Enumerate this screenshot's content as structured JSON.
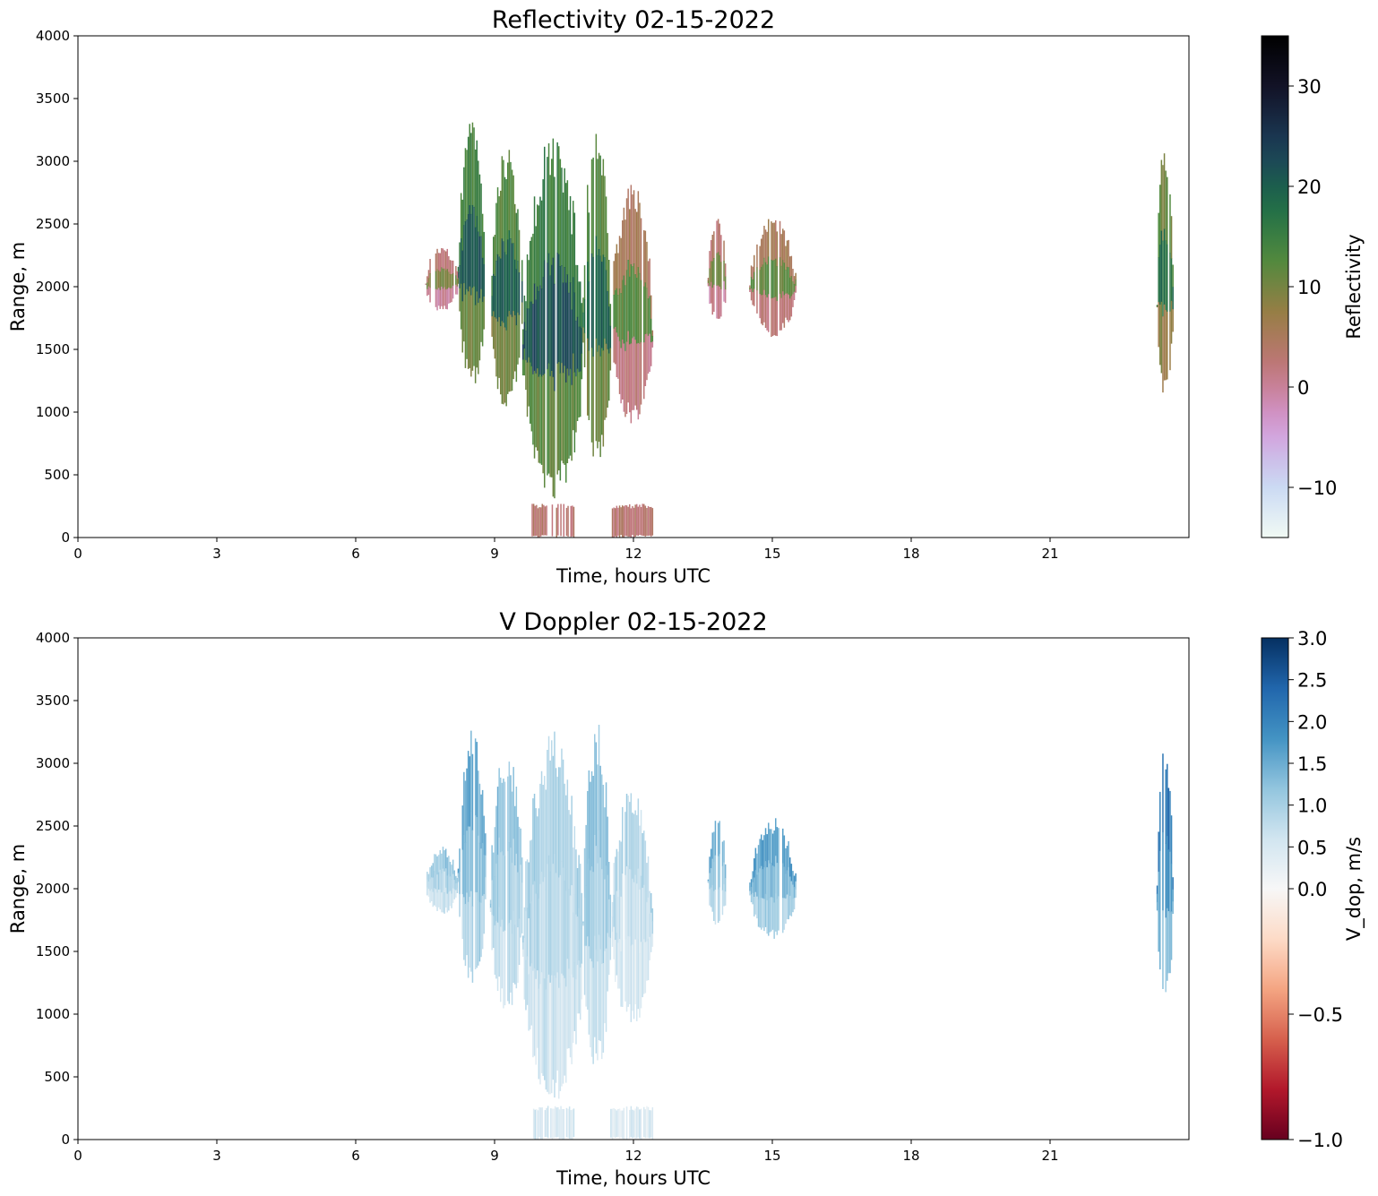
{
  "chart_data": [
    {
      "type": "heatmap",
      "title": "Reflectivity 02-15-2022",
      "xlabel": "Time, hours UTC",
      "ylabel": "Range, m",
      "xlim": [
        0,
        24
      ],
      "ylim": [
        0,
        4000
      ],
      "xticks": [
        0,
        3,
        6,
        9,
        12,
        15,
        18,
        21
      ],
      "xtick_labels": [
        "0",
        "3",
        "6",
        "9",
        "12",
        "15",
        "18",
        "21"
      ],
      "yticks": [
        0,
        500,
        1000,
        1500,
        2000,
        2500,
        3000,
        3500,
        4000
      ],
      "ytick_labels": [
        "0",
        "500",
        "1000",
        "1500",
        "2000",
        "2500",
        "3000",
        "3500",
        "4000"
      ],
      "colorbar": {
        "label": "Reflectivity",
        "colormap": "cubehelix_r",
        "vmin": -15,
        "vmax": 35,
        "ticks": [
          -10,
          0,
          10,
          20,
          30
        ],
        "tick_labels": [
          "−10",
          "0",
          "10",
          "20",
          "30"
        ],
        "colors": [
          "#f1faf4",
          "#c7d6f3",
          "#d59ad9",
          "#c2767e",
          "#9a7d45",
          "#4f8a3e",
          "#1d6b48",
          "#1b3e5a",
          "#14142a",
          "#000000"
        ]
      },
      "features": [
        {
          "kind": "cloud",
          "time": [
            8.2,
            8.8
          ],
          "range": [
            1200,
            3200
          ],
          "value": 18
        },
        {
          "kind": "cloud",
          "time": [
            8.9,
            9.6
          ],
          "range": [
            1000,
            3000
          ],
          "value": 17
        },
        {
          "kind": "cloud",
          "time": [
            9.6,
            10.9
          ],
          "range": [
            300,
            3050
          ],
          "value": 19
        },
        {
          "kind": "cloud",
          "time": [
            10.9,
            11.5
          ],
          "range": [
            550,
            3150
          ],
          "value": 17
        },
        {
          "kind": "cloud",
          "time": [
            11.5,
            12.4
          ],
          "range": [
            900,
            2700
          ],
          "value": 9
        },
        {
          "kind": "cloud",
          "time": [
            7.5,
            8.2
          ],
          "range": [
            1800,
            2300
          ],
          "value": 7
        },
        {
          "kind": "cloud",
          "time": [
            13.6,
            14.0
          ],
          "range": [
            1700,
            2500
          ],
          "value": 7
        },
        {
          "kind": "cloud",
          "time": [
            14.5,
            15.5
          ],
          "range": [
            1600,
            2500
          ],
          "value": 9
        },
        {
          "kind": "cloud",
          "time": [
            23.3,
            23.65
          ],
          "range": [
            1100,
            3050
          ],
          "value": 15
        },
        {
          "kind": "surface",
          "time": [
            9.8,
            10.7
          ],
          "range": [
            0,
            250
          ],
          "value": 3
        },
        {
          "kind": "surface",
          "time": [
            11.5,
            12.4
          ],
          "range": [
            0,
            250
          ],
          "value": 3
        }
      ]
    },
    {
      "type": "heatmap",
      "title": "V Doppler 02-15-2022",
      "xlabel": "Time, hours UTC",
      "ylabel": "Range, m",
      "xlim": [
        0,
        24
      ],
      "ylim": [
        0,
        4000
      ],
      "xticks": [
        0,
        3,
        6,
        9,
        12,
        15,
        18,
        21
      ],
      "xtick_labels": [
        "0",
        "3",
        "6",
        "9",
        "12",
        "15",
        "18",
        "21"
      ],
      "yticks": [
        0,
        500,
        1000,
        1500,
        2000,
        2500,
        3000,
        3500,
        4000
      ],
      "ytick_labels": [
        "0",
        "500",
        "1000",
        "1500",
        "2000",
        "2500",
        "3000",
        "3500",
        "4000"
      ],
      "colorbar": {
        "label": "V_dop, m/s",
        "colormap": "RdBu (two-slope, centred at 0)",
        "vmin": -1.0,
        "vmax": 3.0,
        "ticks": [
          -1.0,
          -0.5,
          0.0,
          0.5,
          1.0,
          1.5,
          2.0,
          2.5,
          3.0
        ],
        "tick_labels": [
          "−1.0",
          "−0.5",
          "0.0",
          "0.5",
          "1.0",
          "1.5",
          "2.0",
          "2.5",
          "3.0"
        ],
        "colors_negative": [
          "#67001f",
          "#b2182b",
          "#d6604d",
          "#f4a582",
          "#fddbc7",
          "#f7f7f7"
        ],
        "colors_positive": [
          "#f7f7f7",
          "#d1e5f0",
          "#92c5de",
          "#4393c3",
          "#2166ac",
          "#053061"
        ]
      },
      "features": [
        {
          "kind": "cloud",
          "time": [
            8.2,
            8.8
          ],
          "range": [
            1200,
            3200
          ],
          "value": 1.3
        },
        {
          "kind": "cloud",
          "time": [
            8.9,
            9.6
          ],
          "range": [
            1000,
            3000
          ],
          "value": 1.0
        },
        {
          "kind": "cloud",
          "time": [
            9.6,
            10.9
          ],
          "range": [
            300,
            3050
          ],
          "value": 0.8
        },
        {
          "kind": "cloud",
          "time": [
            10.9,
            11.5
          ],
          "range": [
            550,
            3150
          ],
          "value": 1.0
        },
        {
          "kind": "cloud",
          "time": [
            11.5,
            12.4
          ],
          "range": [
            900,
            2700
          ],
          "value": 0.7
        },
        {
          "kind": "cloud",
          "time": [
            7.5,
            8.2
          ],
          "range": [
            1800,
            2300
          ],
          "value": 0.9
        },
        {
          "kind": "cloud",
          "time": [
            13.6,
            14.0
          ],
          "range": [
            1700,
            2500
          ],
          "value": 1.2
        },
        {
          "kind": "cloud",
          "time": [
            14.5,
            15.5
          ],
          "range": [
            1600,
            2500
          ],
          "value": 1.4
        },
        {
          "kind": "cloud",
          "time": [
            23.3,
            23.65
          ],
          "range": [
            1100,
            3050
          ],
          "value": 1.8
        },
        {
          "kind": "surface",
          "time": [
            9.8,
            10.7
          ],
          "range": [
            0,
            250
          ],
          "value": 0.5
        },
        {
          "kind": "surface",
          "time": [
            11.5,
            12.4
          ],
          "range": [
            0,
            250
          ],
          "value": 0.5
        }
      ]
    }
  ]
}
